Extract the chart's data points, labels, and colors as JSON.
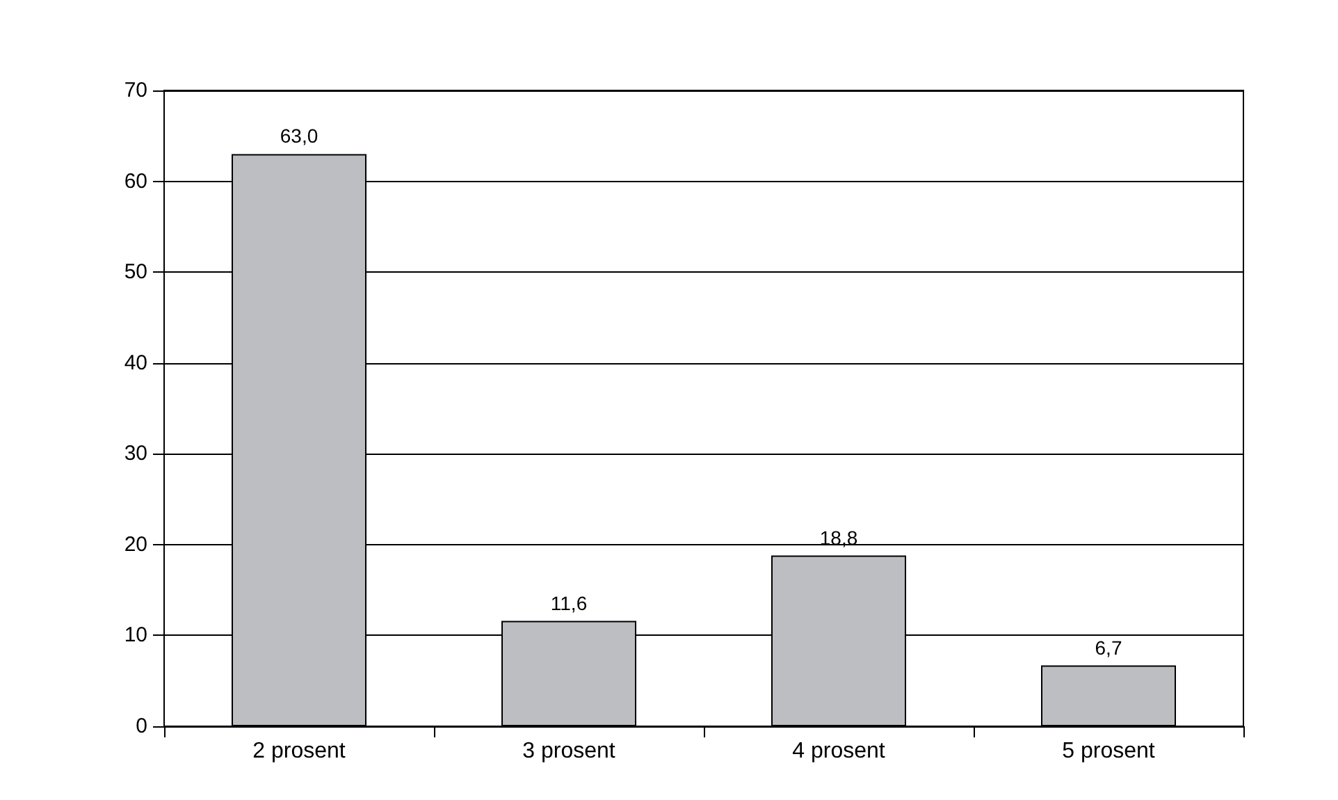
{
  "chart_data": {
    "type": "bar",
    "categories": [
      "2 prosent",
      "3 prosent",
      "4 prosent",
      "5 prosent"
    ],
    "values": [
      63.0,
      11.6,
      18.8,
      6.7
    ],
    "value_labels": [
      "63,0",
      "11,6",
      "18,8",
      "6,7"
    ],
    "color": "#bdbec2",
    "ylim": [
      0,
      70
    ],
    "yticks": [
      0,
      10,
      20,
      30,
      40,
      50,
      60,
      70
    ],
    "grid": "y"
  }
}
